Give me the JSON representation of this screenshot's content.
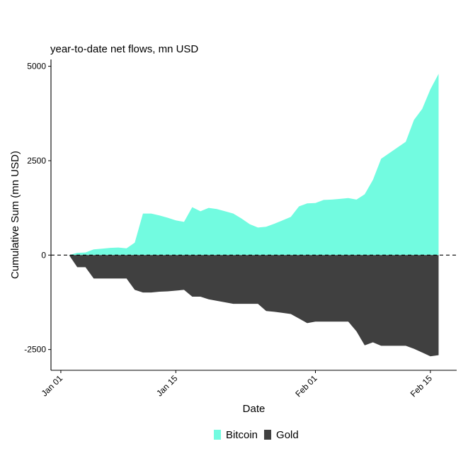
{
  "chart_data": {
    "type": "area",
    "title": "year-to-date net flows, mn USD",
    "xlabel": "Date",
    "ylabel": "Cumulative Sum (mn USD)",
    "x_ticks": [
      {
        "label": "Jan 01",
        "day": 0
      },
      {
        "label": "Jan 15",
        "day": 14
      },
      {
        "label": "Feb 01",
        "day": 31
      },
      {
        "label": "Feb 15",
        "day": 45
      }
    ],
    "y_ticks": [
      {
        "label": "-2500",
        "value": -2500
      },
      {
        "label": "0",
        "value": 0
      },
      {
        "label": "2500",
        "value": 2500
      },
      {
        "label": "5000",
        "value": 5000
      }
    ],
    "xlim": [
      -1.2,
      48.2
    ],
    "ylim": [
      -3050,
      5180
    ],
    "reference_line": {
      "value": 0,
      "style": "dashed"
    },
    "grid": false,
    "legend_position": "bottom",
    "series": [
      {
        "name": "Bitcoin",
        "color": "#72FBE0",
        "points": [
          [
            1,
            0
          ],
          [
            2,
            60
          ],
          [
            3,
            70
          ],
          [
            4,
            150
          ],
          [
            5,
            170
          ],
          [
            6,
            190
          ],
          [
            7,
            200
          ],
          [
            8,
            180
          ],
          [
            9,
            330
          ],
          [
            10,
            1100
          ],
          [
            11,
            1100
          ],
          [
            12,
            1050
          ],
          [
            13,
            990
          ],
          [
            14,
            920
          ],
          [
            15,
            880
          ],
          [
            16,
            1270
          ],
          [
            17,
            1160
          ],
          [
            18,
            1250
          ],
          [
            19,
            1220
          ],
          [
            20,
            1160
          ],
          [
            21,
            1100
          ],
          [
            22,
            970
          ],
          [
            23,
            820
          ],
          [
            24,
            730
          ],
          [
            25,
            750
          ],
          [
            26,
            830
          ],
          [
            27,
            920
          ],
          [
            28,
            1010
          ],
          [
            29,
            1290
          ],
          [
            30,
            1370
          ],
          [
            31,
            1380
          ],
          [
            32,
            1460
          ],
          [
            33,
            1470
          ],
          [
            34,
            1490
          ],
          [
            35,
            1510
          ],
          [
            36,
            1470
          ],
          [
            37,
            1610
          ],
          [
            38,
            1990
          ],
          [
            39,
            2550
          ],
          [
            40,
            2700
          ],
          [
            41,
            2850
          ],
          [
            42,
            3000
          ],
          [
            43,
            3580
          ],
          [
            44,
            3870
          ],
          [
            45,
            4390
          ],
          [
            46,
            4800
          ]
        ]
      },
      {
        "name": "Gold",
        "color": "#404040",
        "points": [
          [
            1,
            0
          ],
          [
            2,
            -320
          ],
          [
            3,
            -320
          ],
          [
            4,
            -620
          ],
          [
            5,
            -620
          ],
          [
            6,
            -620
          ],
          [
            7,
            -620
          ],
          [
            8,
            -620
          ],
          [
            9,
            -920
          ],
          [
            10,
            -990
          ],
          [
            11,
            -990
          ],
          [
            12,
            -970
          ],
          [
            13,
            -960
          ],
          [
            14,
            -940
          ],
          [
            15,
            -920
          ],
          [
            16,
            -1100
          ],
          [
            17,
            -1100
          ],
          [
            18,
            -1170
          ],
          [
            19,
            -1210
          ],
          [
            20,
            -1250
          ],
          [
            21,
            -1290
          ],
          [
            22,
            -1290
          ],
          [
            23,
            -1290
          ],
          [
            24,
            -1290
          ],
          [
            25,
            -1480
          ],
          [
            26,
            -1500
          ],
          [
            27,
            -1530
          ],
          [
            28,
            -1560
          ],
          [
            29,
            -1680
          ],
          [
            30,
            -1800
          ],
          [
            31,
            -1760
          ],
          [
            32,
            -1760
          ],
          [
            33,
            -1760
          ],
          [
            34,
            -1760
          ],
          [
            35,
            -1760
          ],
          [
            36,
            -2020
          ],
          [
            37,
            -2390
          ],
          [
            38,
            -2310
          ],
          [
            39,
            -2400
          ],
          [
            40,
            -2400
          ],
          [
            41,
            -2400
          ],
          [
            42,
            -2400
          ],
          [
            43,
            -2480
          ],
          [
            44,
            -2580
          ],
          [
            45,
            -2680
          ],
          [
            46,
            -2650
          ]
        ]
      }
    ]
  }
}
